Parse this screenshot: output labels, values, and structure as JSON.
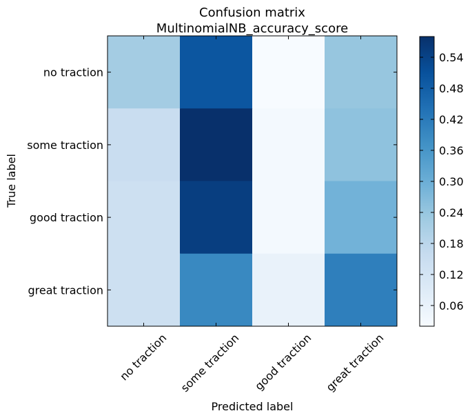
{
  "chart_data": {
    "type": "heatmap",
    "title": "Confusion matrix",
    "subtitle": "MultinomialNB_accuracy_score",
    "xlabel": "Predicted label",
    "ylabel": "True label",
    "x_categories": [
      "no traction",
      "some traction",
      "good traction",
      "great traction"
    ],
    "y_categories": [
      "no traction",
      "some traction",
      "good traction",
      "great traction"
    ],
    "values": [
      [
        0.22,
        0.5,
        0.02,
        0.24
      ],
      [
        0.15,
        0.58,
        0.03,
        0.25
      ],
      [
        0.14,
        0.55,
        0.03,
        0.29
      ],
      [
        0.14,
        0.39,
        0.06,
        0.41
      ]
    ],
    "colorbar": {
      "min": 0.02,
      "max": 0.58,
      "ticks": [
        "0.06",
        "0.12",
        "0.18",
        "0.24",
        "0.30",
        "0.36",
        "0.42",
        "0.48",
        "0.54"
      ],
      "tick_values": [
        0.06,
        0.12,
        0.18,
        0.24,
        0.3,
        0.36,
        0.42,
        0.48,
        0.54
      ],
      "colormap": "Blues"
    },
    "grid": false
  }
}
